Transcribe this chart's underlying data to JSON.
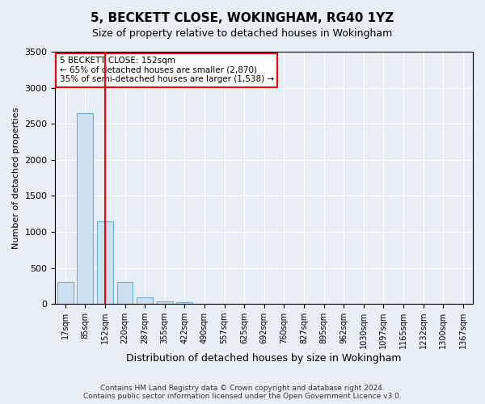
{
  "title": "5, BECKETT CLOSE, WOKINGHAM, RG40 1YZ",
  "subtitle": "Size of property relative to detached houses in Wokingham",
  "xlabel": "Distribution of detached houses by size in Wokingham",
  "ylabel": "Number of detached properties",
  "footer_line1": "Contains HM Land Registry data © Crown copyright and database right 2024.",
  "footer_line2": "Contains public sector information licensed under the Open Government Licence v3.0.",
  "bins": [
    "17sqm",
    "85sqm",
    "152sqm",
    "220sqm",
    "287sqm",
    "355sqm",
    "422sqm",
    "490sqm",
    "557sqm",
    "625sqm",
    "692sqm",
    "760sqm",
    "827sqm",
    "895sqm",
    "962sqm",
    "1030sqm",
    "1097sqm",
    "1165sqm",
    "1232sqm",
    "1300sqm",
    "1367sqm"
  ],
  "values": [
    300,
    2650,
    1150,
    300,
    90,
    40,
    30,
    0,
    0,
    0,
    0,
    0,
    0,
    0,
    0,
    0,
    0,
    0,
    0,
    0,
    0
  ],
  "bar_color": "#cce0f0",
  "bar_edge_color": "#6baed6",
  "vline_x_index": 2,
  "vline_color": "red",
  "ylim": [
    0,
    3500
  ],
  "yticks": [
    0,
    500,
    1000,
    1500,
    2000,
    2500,
    3000,
    3500
  ],
  "annotation_line1": "5 BECKETT CLOSE: 152sqm",
  "annotation_line2": "← 65% of detached houses are smaller (2,870)",
  "annotation_line3": "35% of semi-detached houses are larger (1,538) →",
  "annotation_box_color": "white",
  "annotation_box_edge": "red",
  "background_color": "#e8eef5",
  "plot_background": "#e8eef5",
  "title_fontsize": 11,
  "subtitle_fontsize": 9,
  "ylabel_fontsize": 8,
  "xlabel_fontsize": 9,
  "tick_fontsize": 7,
  "footer_fontsize": 6.5
}
